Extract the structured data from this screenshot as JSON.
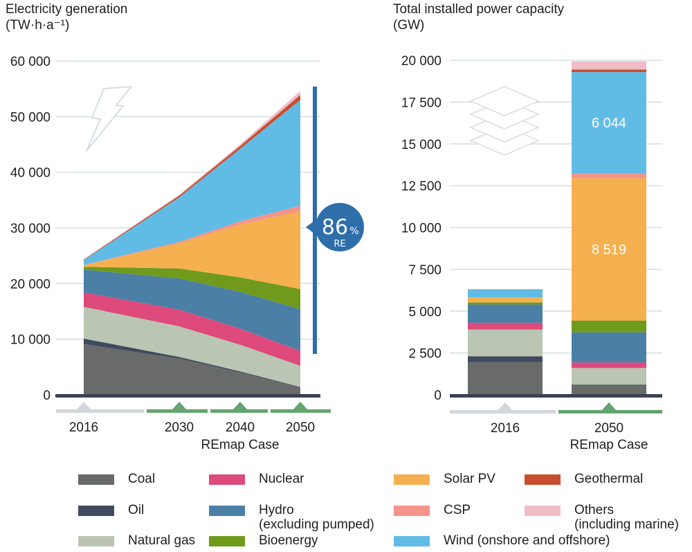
{
  "chart_data": [
    {
      "type": "area",
      "title": "Electricity generation",
      "unit_label": "(TW·h·a⁻¹)",
      "x": [
        "2016",
        "2030",
        "2040",
        "2050"
      ],
      "x_group_label": "REmap Case",
      "ylim": [
        0,
        60000
      ],
      "y_ticks": [
        0,
        10000,
        20000,
        30000,
        40000,
        50000,
        60000
      ],
      "y_tick_labels": [
        "0",
        "10 000",
        "20 000",
        "30 000",
        "40 000",
        "50 000",
        "60 000"
      ],
      "grid": true,
      "series": [
        {
          "name": "Coal",
          "values": [
            9100,
            6500,
            4000,
            1300
          ]
        },
        {
          "name": "Oil",
          "values": [
            1000,
            300,
            200,
            100
          ]
        },
        {
          "name": "Natural gas",
          "values": [
            5700,
            5500,
            4800,
            3800
          ]
        },
        {
          "name": "Nuclear",
          "values": [
            2600,
            3000,
            2900,
            2700
          ]
        },
        {
          "name": "Hydro (excluding pumped)",
          "values": [
            4100,
            5600,
            6600,
            7500
          ]
        },
        {
          "name": "Bioenergy",
          "values": [
            500,
            1800,
            2600,
            3600
          ]
        },
        {
          "name": "Solar PV",
          "values": [
            300,
            4500,
            9500,
            14000
          ]
        },
        {
          "name": "CSP",
          "values": [
            10,
            300,
            600,
            1000
          ]
        },
        {
          "name": "Wind (onshore and offshore)",
          "values": [
            900,
            8000,
            13000,
            19000
          ]
        },
        {
          "name": "Geothermal",
          "values": [
            100,
            300,
            500,
            900
          ]
        },
        {
          "name": "Others (including marine)",
          "values": [
            50,
            150,
            300,
            700
          ]
        }
      ],
      "annotation": {
        "value": "86",
        "unit": "%",
        "label": "RE"
      }
    },
    {
      "type": "bar",
      "stacked": true,
      "title": "Total installed power capacity",
      "unit_label": "(GW)",
      "categories": [
        "2016",
        "2050"
      ],
      "x_group_label": "REmap Case",
      "ylim": [
        0,
        20000
      ],
      "y_ticks": [
        0,
        2500,
        5000,
        7500,
        10000,
        12500,
        15000,
        17500,
        20000
      ],
      "y_tick_labels": [
        "0",
        "2 500",
        "5 000",
        "7 500",
        "10 000",
        "12 500",
        "15 000",
        "17 500",
        "20 000"
      ],
      "grid": true,
      "series": [
        {
          "name": "Coal",
          "values": [
            1950,
            550
          ]
        },
        {
          "name": "Oil",
          "values": [
            350,
            50
          ]
        },
        {
          "name": "Natural gas",
          "values": [
            1600,
            1000
          ]
        },
        {
          "name": "Nuclear",
          "values": [
            400,
            330
          ]
        },
        {
          "name": "Hydro (excluding pumped)",
          "values": [
            1100,
            1800
          ]
        },
        {
          "name": "Bioenergy",
          "values": [
            120,
            700
          ]
        },
        {
          "name": "Solar PV",
          "values": [
            300,
            8519
          ]
        },
        {
          "name": "CSP",
          "values": [
            5,
            300
          ]
        },
        {
          "name": "Wind (onshore and offshore)",
          "values": [
            470,
            6044
          ]
        },
        {
          "name": "Geothermal",
          "values": [
            13,
            150
          ]
        },
        {
          "name": "Others (including marine)",
          "values": [
            10,
            500
          ]
        }
      ],
      "data_labels": [
        {
          "series": "Solar PV",
          "category": "2050",
          "text": "8 519"
        },
        {
          "series": "Wind (onshore and offshore)",
          "category": "2050",
          "text": "6 044"
        }
      ]
    }
  ],
  "legend": [
    {
      "name": "Coal",
      "label": "Coal",
      "color": "#686b69"
    },
    {
      "name": "Nuclear",
      "label": "Nuclear",
      "color": "#dd4a7b"
    },
    {
      "name": "Solar PV",
      "label": "Solar PV",
      "color": "#f5b04f"
    },
    {
      "name": "Geothermal",
      "label": "Geothermal",
      "color": "#c84e2f"
    },
    {
      "name": "Oil",
      "label": "Oil",
      "color": "#404a5e"
    },
    {
      "name": "Hydro (excluding pumped)",
      "label": "Hydro\n(excluding pumped)",
      "color": "#4c7fa6"
    },
    {
      "name": "CSP",
      "label": "CSP",
      "color": "#f4948a"
    },
    {
      "name": "Others (including marine)",
      "label": "Others\n(including marine)",
      "color": "#f0bcc6"
    },
    {
      "name": "Natural gas",
      "label": "Natural gas",
      "color": "#bac6b3"
    },
    {
      "name": "Bioenergy",
      "label": "Bioenergy",
      "color": "#6f9a1c"
    },
    {
      "name": "Wind (onshore and offshore)",
      "label": "Wind (onshore and offshore)",
      "color": "#60bce4"
    }
  ],
  "colors": {
    "Coal": "#686b69",
    "Oil": "#404a5e",
    "Natural gas": "#bac6b3",
    "Nuclear": "#dd4a7b",
    "Hydro (excluding pumped)": "#4c7fa6",
    "Bioenergy": "#6f9a1c",
    "Solar PV": "#f5b04f",
    "CSP": "#f4948a",
    "Wind (onshore and offshore)": "#60bce4",
    "Geothermal": "#c84e2f",
    "Others (including marine)": "#f0bcc6",
    "baseline": "#3c4254",
    "grid": "#d5dde3",
    "re_accent": "#2e6eaa",
    "historic_marker": "#d3d6db",
    "remap_marker": "#64a46f",
    "icon_stroke": "#d6dde3"
  },
  "icons": {
    "left": "lightning-icon",
    "right": "layers-icon"
  }
}
